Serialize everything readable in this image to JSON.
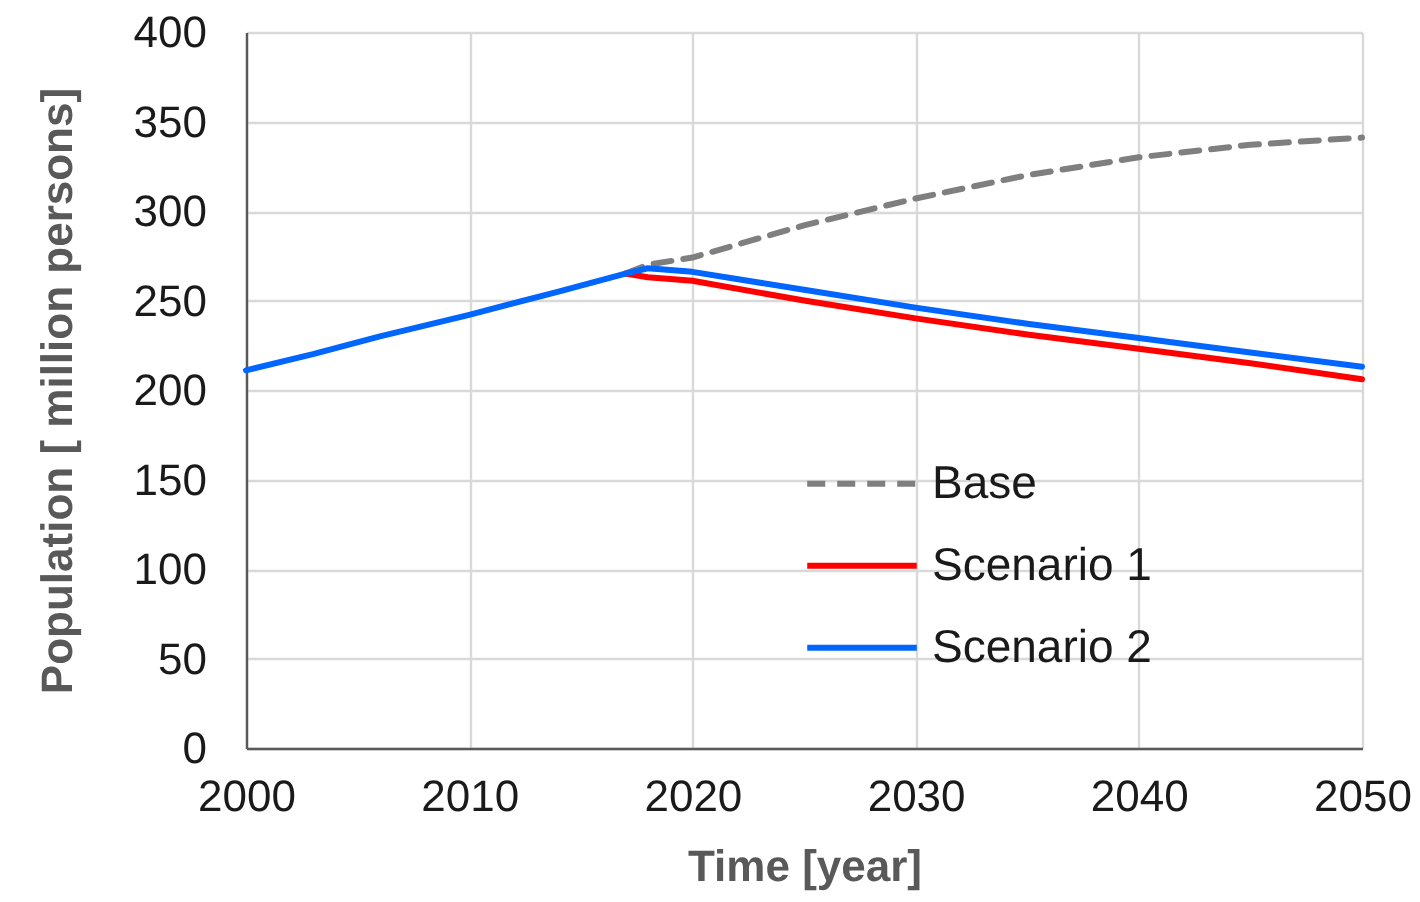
{
  "chart_data": {
    "type": "line",
    "xlabel": "Time [year]",
    "ylabel": "Population [ million persons]",
    "x": [
      2000,
      2003,
      2006,
      2010,
      2014,
      2017,
      2018,
      2020,
      2025,
      2030,
      2035,
      2040,
      2045,
      2050
    ],
    "series": [
      {
        "name": "Base",
        "color": "#7f7f7f",
        "line_style": "dashed",
        "values": [
          null,
          null,
          null,
          null,
          null,
          265,
          270,
          274,
          292,
          307,
          320,
          330,
          337,
          341
        ]
      },
      {
        "name": "Scenario 1",
        "color": "#ff0000",
        "values": [
          null,
          null,
          null,
          null,
          null,
          265,
          263,
          261,
          250,
          240,
          231,
          223,
          215,
          206
        ]
      },
      {
        "name": "Scenario 2",
        "color": "#0066ff",
        "values": [
          211,
          220,
          230,
          242,
          255,
          265,
          268,
          266,
          256,
          246,
          237,
          229,
          221,
          213
        ]
      }
    ],
    "xlim": [
      2000,
      2050
    ],
    "xticks": [
      2000,
      2010,
      2020,
      2030,
      2040,
      2050
    ],
    "ylim": [
      0,
      400
    ],
    "yticks": [
      0,
      50,
      100,
      150,
      200,
      250,
      300,
      350,
      400
    ],
    "grid": true,
    "legend": "bottom right",
    "marker": "none",
    "line_style": "solid"
  }
}
